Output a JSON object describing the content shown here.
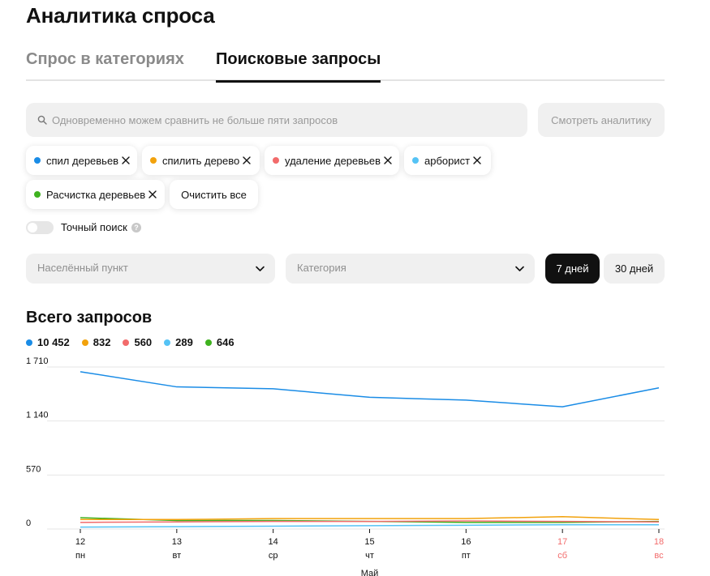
{
  "page": {
    "title": "Аналитика спроса"
  },
  "tabs": [
    {
      "label": "Спрос в категориях",
      "active": false
    },
    {
      "label": "Поисковые запросы",
      "active": true
    }
  ],
  "search": {
    "placeholder": "Одновременно можем сравнить не больше пяти запросов",
    "value": "",
    "icon": "search-icon"
  },
  "analytics_button": {
    "label": "Смотреть аналитику"
  },
  "query_chips": [
    {
      "label": "спил деревьев",
      "color": "#1a8ce6"
    },
    {
      "label": "спилить дерево",
      "color": "#f2a20c"
    },
    {
      "label": "удаление деревьев",
      "color": "#f26b6b"
    },
    {
      "label": "арборист",
      "color": "#55c3f5"
    },
    {
      "label": "Расчистка деревьев",
      "color": "#3fb21f"
    }
  ],
  "clear_button": {
    "label": "Очистить все"
  },
  "exact_search": {
    "label": "Точный поиск",
    "enabled": false,
    "help_icon": "question-icon"
  },
  "filters": {
    "locality": {
      "label": "Населённый пункт",
      "icon": "chevron-down-icon"
    },
    "category": {
      "label": "Категория",
      "icon": "chevron-down-icon"
    }
  },
  "period": {
    "options": [
      "7 дней",
      "30 дней"
    ],
    "selected": "7 дней"
  },
  "totals": {
    "title": "Всего запросов",
    "items": [
      {
        "value": "10 452",
        "color": "#1a8ce6"
      },
      {
        "value": "832",
        "color": "#f2a20c"
      },
      {
        "value": "560",
        "color": "#f26b6b"
      },
      {
        "value": "289",
        "color": "#55c3f5"
      },
      {
        "value": "646",
        "color": "#3fb21f"
      }
    ]
  },
  "chart_data": {
    "type": "line",
    "x": [
      "12",
      "13",
      "14",
      "15",
      "16",
      "17",
      "18"
    ],
    "x_weekdays": [
      "пн",
      "вт",
      "ср",
      "чт",
      "пт",
      "сб",
      "вс"
    ],
    "weekend_flags": [
      false,
      false,
      false,
      false,
      false,
      true,
      true
    ],
    "xlabel": "Май",
    "y_ticks": [
      {
        "value": 0,
        "label": "0"
      },
      {
        "value": 570,
        "label": "570"
      },
      {
        "value": 1140,
        "label": "1 140"
      },
      {
        "value": 1710,
        "label": "1 710"
      }
    ],
    "ylim": [
      0,
      1710
    ],
    "grid": true,
    "series": [
      {
        "name": "спил деревьев",
        "color": "#1a8ce6",
        "values": [
          1660,
          1500,
          1480,
          1390,
          1360,
          1290,
          1490
        ]
      },
      {
        "name": "спилить дерево",
        "color": "#f2a20c",
        "values": [
          100,
          100,
          110,
          110,
          110,
          130,
          100
        ]
      },
      {
        "name": "удаление деревьев",
        "color": "#f26b6b",
        "values": [
          70,
          75,
          80,
          80,
          85,
          80,
          75
        ]
      },
      {
        "name": "арборист",
        "color": "#55c3f5",
        "values": [
          20,
          25,
          30,
          35,
          40,
          45,
          45
        ]
      },
      {
        "name": "Расчистка деревьев",
        "color": "#3fb21f",
        "values": [
          120,
          90,
          90,
          80,
          70,
          70,
          80
        ]
      }
    ],
    "weekend_color": "#f26b6b"
  }
}
